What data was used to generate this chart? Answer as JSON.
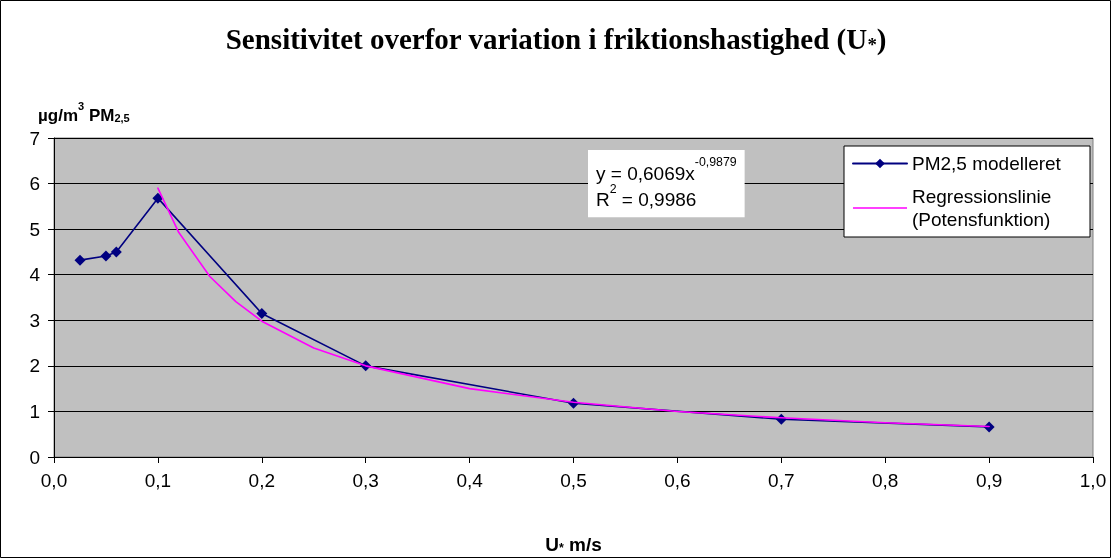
{
  "chart_data": {
    "type": "line",
    "title": "Sensitivitet overfor variation i friktionshastighed (U$_{*}$)",
    "xlabel": "U$_{*}$ m/s",
    "ylabel": "µg/m$^{3}$ PM$_{2,5}$",
    "annotations": [
      "y = 0,6069x$^{-0,9879}$",
      "R$^{2}$ = 0,9986"
    ],
    "xlim": [
      0,
      1
    ],
    "xticks": [
      {
        "value": 0,
        "label": "0,0"
      },
      {
        "value": 0.1,
        "label": "0,1"
      },
      {
        "value": 0.2,
        "label": "0,2"
      },
      {
        "value": 0.3,
        "label": "0,3"
      },
      {
        "value": 0.4,
        "label": "0,4"
      },
      {
        "value": 0.5,
        "label": "0,5"
      },
      {
        "value": 0.6,
        "label": "0,6"
      },
      {
        "value": 0.7,
        "label": "0,7"
      },
      {
        "value": 0.8,
        "label": "0,8"
      },
      {
        "value": 0.9,
        "label": "0,9"
      },
      {
        "value": 1,
        "label": "1,0"
      }
    ],
    "ylim": [
      0,
      7
    ],
    "yticks": [
      0,
      1,
      2,
      3,
      4,
      5,
      6,
      7
    ],
    "grid": "y",
    "legend": "top right",
    "marker": "diamond",
    "line_style": "solid",
    "series": [
      {
        "name": "PM2,5 modelleret",
        "color": "#000080",
        "x": [
          0.025,
          0.05,
          0.06,
          0.1,
          0.2,
          0.3,
          0.5,
          0.7,
          0.9
        ],
        "values": [
          4.32,
          4.41,
          4.5,
          5.68,
          3.15,
          2.0,
          1.18,
          0.83,
          0.66
        ]
      },
      {
        "name": "Regressionslinie (Potensfunktion)",
        "color": "#ff00ff",
        "marker": "none",
        "x": [
          0.1,
          0.12,
          0.15,
          0.175,
          0.2,
          0.25,
          0.3,
          0.4,
          0.5,
          0.6,
          0.7,
          0.8,
          0.9
        ],
        "values": [
          5.9,
          4.93,
          3.96,
          3.41,
          2.98,
          2.39,
          2.0,
          1.5,
          1.2,
          1.0,
          0.86,
          0.75,
          0.67
        ]
      }
    ]
  }
}
